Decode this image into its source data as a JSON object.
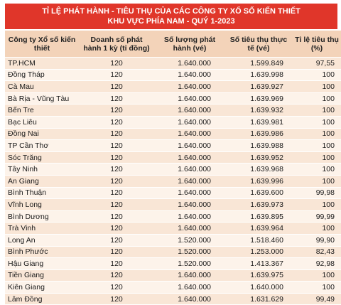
{
  "title": {
    "line1": "TỈ LỆ PHÁT HÀNH - TIÊU THỤ CỦA CÁC CÔNG TY XỔ SỐ KIẾN THIẾT",
    "line2": "KHU VỰC PHÍA NAM - QUÝ 1-2023"
  },
  "headers": [
    "Công ty Xổ số kiến thiết",
    "Doanh số phát hành 1 kỳ (tỉ đồng)",
    "Số lượng phát hành (vé)",
    "Số tiêu thụ thực tế (vé)",
    "Tỉ lệ tiêu thụ (%)"
  ],
  "rows": [
    [
      "TP.HCM",
      "120",
      "1.640.000",
      "1.599.849",
      "97,55"
    ],
    [
      "Đồng Tháp",
      "120",
      "1.640.000",
      "1.639.998",
      "100"
    ],
    [
      "Cà Mau",
      "120",
      "1.640.000",
      "1.639.927",
      "100"
    ],
    [
      "Bà Rịa - Vũng Tàu",
      "120",
      "1.640.000",
      "1.639.969",
      "100"
    ],
    [
      "Bến Tre",
      "120",
      "1.640.000",
      "1.639.932",
      "100"
    ],
    [
      "Bạc Liêu",
      "120",
      "1.640.000",
      "1.639.981",
      "100"
    ],
    [
      "Đồng Nai",
      "120",
      "1.640.000",
      "1.639.986",
      "100"
    ],
    [
      "TP Cần Thơ",
      "120",
      "1.640.000",
      "1.639.988",
      "100"
    ],
    [
      "Sóc Trăng",
      "120",
      "1.640.000",
      "1.639.952",
      "100"
    ],
    [
      "Tây Ninh",
      "120",
      "1.640.000",
      "1.639.968",
      "100"
    ],
    [
      "An Giang",
      "120",
      "1.640.000",
      "1.639.996",
      "100"
    ],
    [
      "Bình Thuận",
      "120",
      "1.640.000",
      "1.639.600",
      "99,98"
    ],
    [
      "Vĩnh Long",
      "120",
      "1.640.000",
      "1.639.973",
      "100"
    ],
    [
      "Bình Dương",
      "120",
      "1.640.000",
      "1.639.895",
      "99,99"
    ],
    [
      "Trà Vinh",
      "120",
      "1.640.000",
      "1.639.964",
      "100"
    ],
    [
      "Long An",
      "120",
      "1.520.000",
      "1.518.460",
      "99,90"
    ],
    [
      "Bình Phước",
      "120",
      "1.520.000",
      "1.253.000",
      "82,43"
    ],
    [
      "Hậu Giang",
      "120",
      "1.520.000",
      "1.413.367",
      "92,98"
    ],
    [
      "Tiền Giang",
      "120",
      "1.640.000",
      "1.639.975",
      "100"
    ],
    [
      "Kiên Giang",
      "120",
      "1.640.000",
      "1.640.000",
      "100"
    ],
    [
      "Lâm Đồng",
      "120",
      "1.640.000",
      "1.631.629",
      "99,49"
    ]
  ],
  "colors": {
    "title_bg": "#e0362a",
    "header_bg": "#f3d3b9",
    "row_odd_bg": "#f9e6d6",
    "row_even_bg": "#fdf3ea"
  }
}
